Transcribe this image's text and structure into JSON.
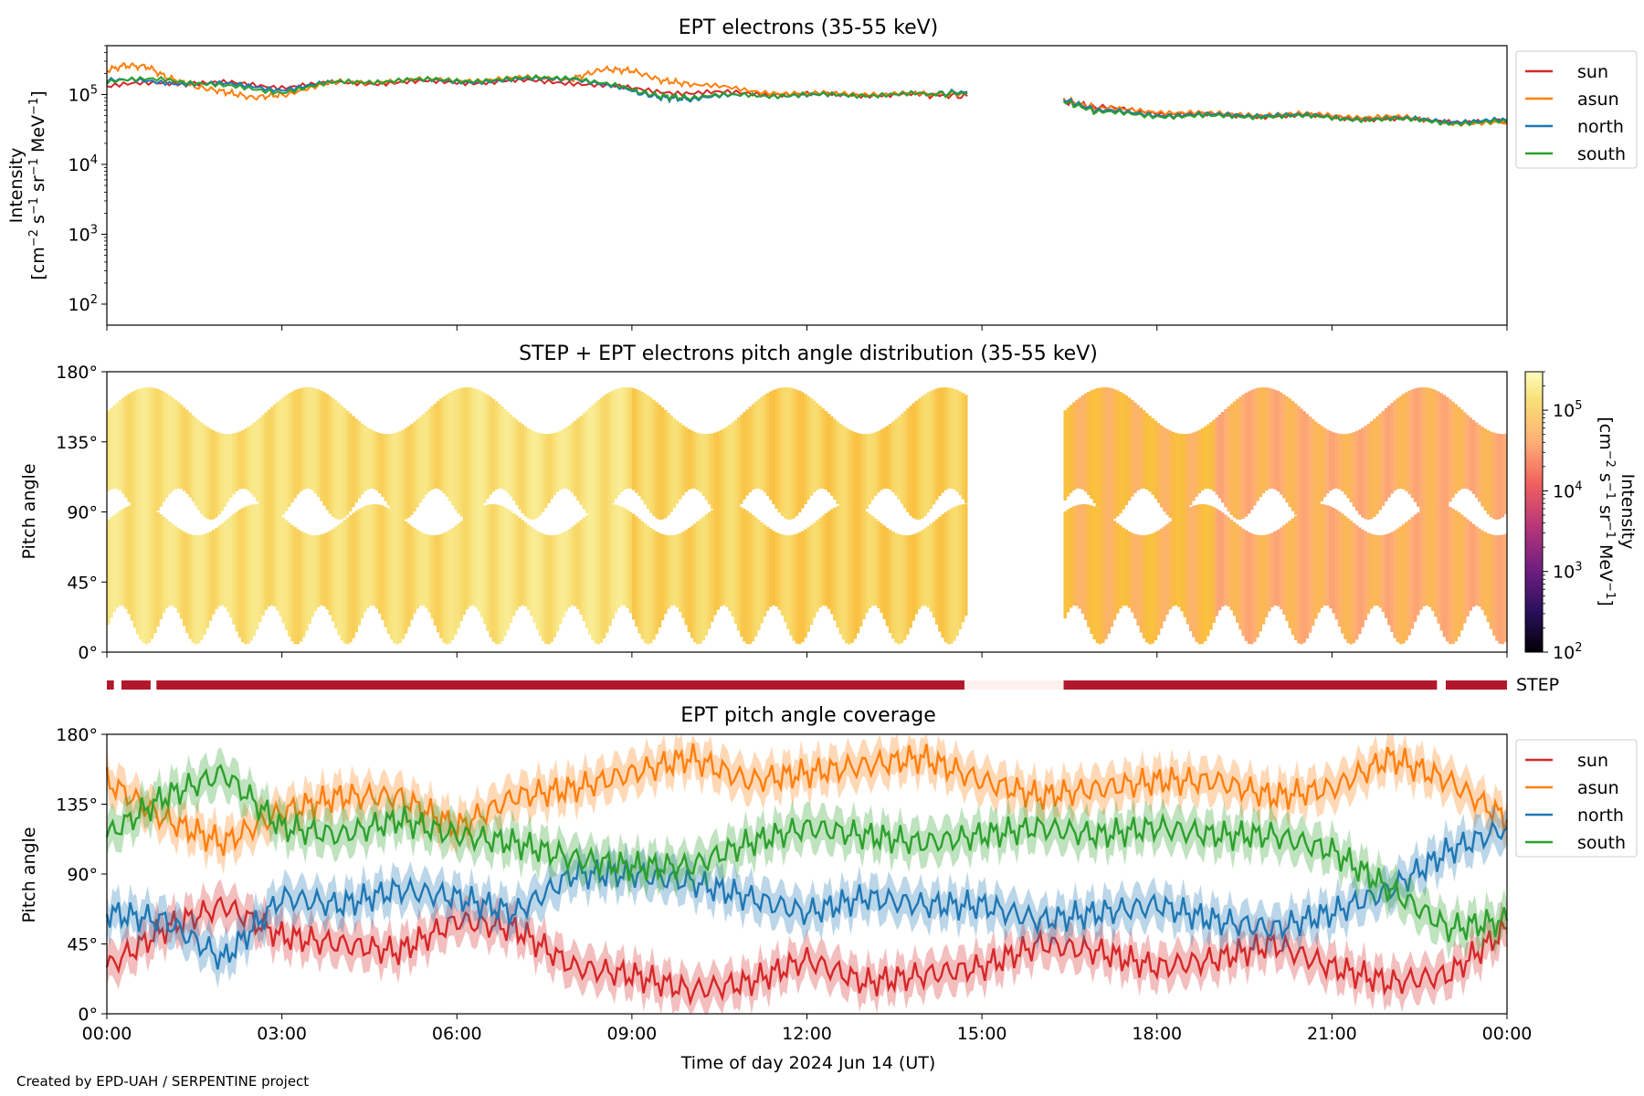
{
  "footer": {
    "credit": "Created by EPD-UAH / SERPENTINE project"
  },
  "x_axis": {
    "label": "Time of day 2024 Jun 14 (UT)",
    "range_hours": [
      0,
      24
    ],
    "ticks": [
      0,
      3,
      6,
      9,
      12,
      15,
      18,
      21,
      24
    ],
    "tick_labels": [
      "00:00",
      "03:00",
      "06:00",
      "09:00",
      "12:00",
      "15:00",
      "18:00",
      "21:00",
      "00:00"
    ]
  },
  "colors": {
    "sun": "#d62728",
    "asun": "#ff7f0e",
    "north": "#1f77b4",
    "south": "#2ca02c",
    "step_bar": "#b2182b",
    "step_gap": "#fdf1ee"
  },
  "chart_data": [
    {
      "type": "line",
      "title": "EPT electrons (35-55 keV)",
      "ylabel": "Intensity",
      "yunit_prefix": "[cm",
      "yunit_parts": [
        "−2",
        " s",
        "−1",
        " sr",
        "−1",
        " MeV",
        "−1",
        "]"
      ],
      "yscale": "log",
      "ylim": [
        50,
        500000
      ],
      "yticks": [
        100,
        1000,
        10000,
        100000
      ],
      "ytick_base": "10",
      "ytick_exp": [
        "2",
        "3",
        "4",
        "5"
      ],
      "legend": {
        "placement": "outside-right-top",
        "entries": [
          "sun",
          "asun",
          "north",
          "south"
        ]
      },
      "data_gap_hours": [
        14.75,
        16.4
      ],
      "series": [
        {
          "name": "sun",
          "color": "#d62728",
          "x": [
            0,
            1,
            2,
            3,
            4,
            5,
            6,
            7,
            8,
            9,
            10,
            11,
            12,
            13,
            14,
            14.75,
            16.4,
            17,
            18,
            19,
            20,
            21,
            22,
            23,
            24
          ],
          "y": [
            130000,
            150000,
            145000,
            130000,
            145000,
            150000,
            150000,
            155000,
            150000,
            120000,
            105000,
            105000,
            100000,
            100000,
            98000,
            95000,
            80000,
            65000,
            55000,
            50000,
            50000,
            48000,
            44000,
            42000,
            40000
          ]
        },
        {
          "name": "asun",
          "color": "#ff7f0e",
          "x": [
            0,
            0.3,
            0.7,
            1,
            1.5,
            2,
            2.5,
            3,
            4,
            5,
            6,
            7,
            8,
            8.5,
            9,
            9.5,
            10,
            11,
            12,
            13,
            14,
            14.75,
            16.4,
            17,
            18,
            19,
            20,
            21,
            22,
            23,
            24
          ],
          "y": [
            220000,
            260000,
            250000,
            180000,
            130000,
            110000,
            90000,
            100000,
            150000,
            160000,
            160000,
            170000,
            170000,
            230000,
            220000,
            160000,
            140000,
            115000,
            100000,
            105000,
            100000,
            105000,
            85000,
            62000,
            58000,
            52000,
            53000,
            50000,
            48000,
            40000,
            38000
          ]
        },
        {
          "name": "north",
          "color": "#1f77b4",
          "x": [
            0,
            1,
            2,
            3,
            4,
            5,
            6,
            7,
            8,
            9,
            9.5,
            10,
            11,
            12,
            13,
            14,
            14.75,
            16.4,
            17,
            18,
            19,
            20,
            21,
            22,
            23,
            24
          ],
          "y": [
            160000,
            150000,
            140000,
            120000,
            150000,
            160000,
            155000,
            160000,
            175000,
            110000,
            90000,
            85000,
            100000,
            95000,
            100000,
            100000,
            110000,
            85000,
            58000,
            52000,
            50000,
            52000,
            47000,
            45000,
            42000,
            42000
          ]
        },
        {
          "name": "south",
          "color": "#2ca02c",
          "x": [
            0,
            1,
            2,
            3,
            4,
            5,
            6,
            7,
            8,
            9,
            9.5,
            10,
            11,
            12,
            13,
            14,
            14.75,
            16.4,
            17,
            18,
            19,
            20,
            21,
            22,
            23,
            24
          ],
          "y": [
            150000,
            170000,
            130000,
            110000,
            150000,
            160000,
            160000,
            165000,
            180000,
            115000,
            95000,
            90000,
            100000,
            97000,
            100000,
            100000,
            105000,
            80000,
            55000,
            50000,
            48000,
            50000,
            46000,
            44000,
            40000,
            40000
          ]
        }
      ]
    },
    {
      "type": "heatmap",
      "title": "STEP + EPT electrons pitch angle distribution (35-55 keV)",
      "ylabel": "Pitch angle",
      "ylim": [
        0,
        180
      ],
      "yticks": [
        0,
        45,
        90,
        135,
        180
      ],
      "ytick_labels": [
        "0°",
        "45°",
        "90°",
        "135°",
        "180°"
      ],
      "colorbar": {
        "scale": "log",
        "range": [
          100,
          300000
        ],
        "ticks": [
          100,
          1000,
          10000,
          100000
        ],
        "tick_base": "10",
        "tick_exp": [
          "2",
          "3",
          "4",
          "5"
        ],
        "label": "Intensity",
        "unit_prefix": "[cm",
        "unit_parts": [
          "−2",
          " s",
          "−1",
          " sr",
          "−1",
          " MeV",
          "−1",
          "]"
        ]
      },
      "data_gap_hours": [
        14.75,
        16.4
      ],
      "intensity_blocks": [
        {
          "t0": 0,
          "t1": 1,
          "level": 150000
        },
        {
          "t0": 1,
          "t1": 3,
          "level": 140000
        },
        {
          "t0": 3,
          "t1": 6,
          "level": 130000
        },
        {
          "t0": 6,
          "t1": 9,
          "level": 150000
        },
        {
          "t0": 9,
          "t1": 11,
          "level": 110000
        },
        {
          "t0": 11,
          "t1": 14.75,
          "level": 100000
        },
        {
          "t0": 16.4,
          "t1": 19,
          "level": 60000
        },
        {
          "t0": 19,
          "t1": 24,
          "level": 45000
        }
      ]
    },
    {
      "type": "bar",
      "title": "",
      "label": "STEP",
      "segments": [
        {
          "t0": 0.0,
          "t1": 0.12
        },
        {
          "t0": 0.25,
          "t1": 0.75
        },
        {
          "t0": 0.85,
          "t1": 14.7
        },
        {
          "t0": 16.4,
          "t1": 22.8
        },
        {
          "t0": 22.95,
          "t1": 24
        }
      ],
      "gap": {
        "t0": 14.7,
        "t1": 16.4
      }
    },
    {
      "type": "line",
      "title": "EPT pitch angle coverage",
      "ylabel": "Pitch angle",
      "ylim": [
        0,
        180
      ],
      "yticks": [
        0,
        45,
        90,
        135,
        180
      ],
      "ytick_labels": [
        "0°",
        "45°",
        "90°",
        "135°",
        "180°"
      ],
      "legend": {
        "placement": "outside-right-top",
        "entries": [
          "sun",
          "asun",
          "north",
          "south"
        ]
      },
      "band_halfwidth_deg": 12,
      "series": [
        {
          "name": "sun",
          "color": "#d62728",
          "x": [
            0,
            1,
            2,
            3,
            4,
            5,
            6,
            7,
            8,
            9,
            10,
            11,
            12,
            13,
            14,
            15,
            16,
            17,
            18,
            19,
            20,
            21,
            22,
            23,
            24
          ],
          "y": [
            30,
            55,
            70,
            50,
            45,
            40,
            60,
            55,
            30,
            25,
            15,
            20,
            35,
            20,
            25,
            30,
            45,
            40,
            30,
            35,
            45,
            30,
            20,
            25,
            55
          ]
        },
        {
          "name": "asun",
          "color": "#ff7f0e",
          "x": [
            0,
            1,
            2,
            3,
            4,
            5,
            6,
            7,
            8,
            9,
            10,
            11,
            12,
            13,
            14,
            15,
            16,
            17,
            18,
            19,
            20,
            21,
            22,
            23,
            24
          ],
          "y": [
            150,
            125,
            110,
            130,
            140,
            140,
            120,
            140,
            145,
            155,
            165,
            150,
            155,
            160,
            165,
            150,
            140,
            145,
            150,
            150,
            140,
            145,
            165,
            150,
            125
          ]
        },
        {
          "name": "north",
          "color": "#1f77b4",
          "x": [
            0,
            1,
            2,
            3,
            4,
            5,
            6,
            7,
            8,
            9,
            10,
            11,
            12,
            13,
            14,
            15,
            16,
            17,
            18,
            19,
            20,
            21,
            22,
            23,
            24
          ],
          "y": [
            65,
            60,
            35,
            75,
            70,
            80,
            75,
            65,
            90,
            90,
            85,
            75,
            65,
            75,
            70,
            70,
            60,
            65,
            70,
            60,
            55,
            65,
            80,
            105,
            120
          ]
        },
        {
          "name": "south",
          "color": "#2ca02c",
          "x": [
            0,
            1,
            2,
            3,
            4,
            5,
            6,
            7,
            8,
            9,
            10,
            11,
            12,
            13,
            14,
            15,
            16,
            17,
            18,
            19,
            20,
            21,
            22,
            23,
            24
          ],
          "y": [
            115,
            140,
            155,
            120,
            115,
            125,
            115,
            110,
            100,
            95,
            95,
            110,
            120,
            115,
            110,
            115,
            120,
            115,
            120,
            115,
            115,
            105,
            80,
            55,
            60
          ]
        }
      ]
    }
  ]
}
